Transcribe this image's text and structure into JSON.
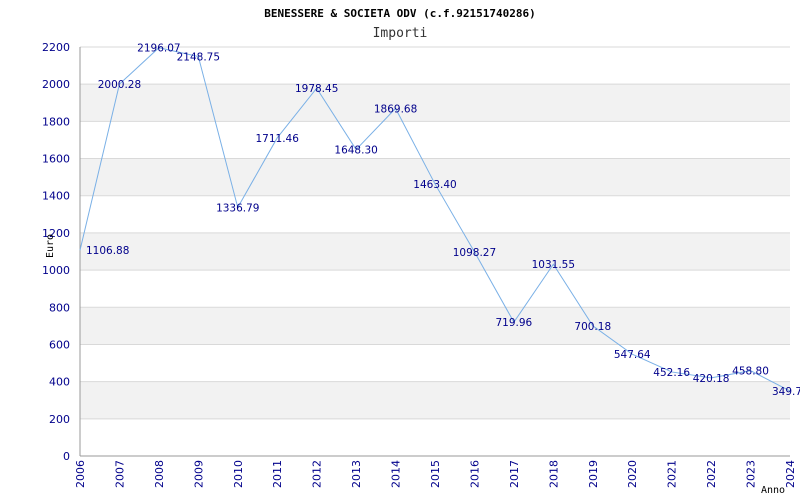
{
  "chart_data": {
    "type": "line",
    "title": "BENESSERE & SOCIETA ODV (c.f.92151740286)",
    "subtitle": "Importi",
    "xlabel": "Anno",
    "ylabel": "Euro",
    "x": [
      "2006",
      "2007",
      "2008",
      "2009",
      "2010",
      "2011",
      "2012",
      "2013",
      "2014",
      "2015",
      "2016",
      "2017",
      "2018",
      "2019",
      "2020",
      "2021",
      "2022",
      "2023",
      "2024"
    ],
    "values": [
      1106.88,
      2000.28,
      2196.07,
      2148.75,
      1336.79,
      1711.46,
      1978.45,
      1648.3,
      1869.68,
      1463.4,
      1098.27,
      719.96,
      1031.55,
      700.18,
      547.64,
      452.16,
      420.18,
      458.8,
      349.7
    ],
    "value_labels": [
      "1106.88",
      "2000.28",
      "2196.07",
      "2148.75",
      "1336.79",
      "1711.46",
      "1978.45",
      "1648.30",
      "1869.68",
      "1463.40",
      "1098.27",
      "719.96",
      "1031.55",
      "700.18",
      "547.64",
      "452.16",
      "420.18",
      "458.80",
      "349.7"
    ],
    "ylim": [
      0,
      2200
    ],
    "yticks": [
      "0",
      "200",
      "400",
      "600",
      "800",
      "1000",
      "1200",
      "1400",
      "1600",
      "1800",
      "2000",
      "2200"
    ],
    "grid": true,
    "colors": {
      "line": "#7ab0e6",
      "band": "#f2f2f2",
      "grid": "#d9d9d9",
      "text": "#00008b"
    }
  }
}
